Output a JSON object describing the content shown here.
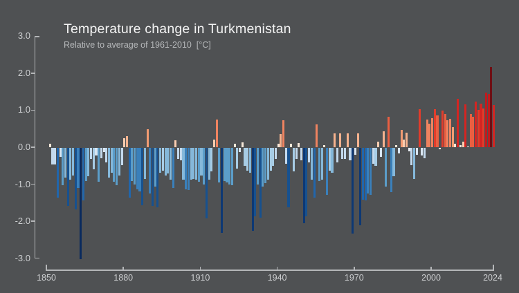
{
  "page": {
    "colors": {
      "background": "#4f5153",
      "axis": "#b5b7b9",
      "tick_label": "#ccced0",
      "title": "#f3f3f3",
      "subtitle": "#b6b8ba",
      "record_warm": "#6f0e13",
      "record_cold": "#0a2a5e"
    }
  },
  "chart_data": {
    "type": "bar",
    "title": "Temperature change in Turkmenistan",
    "subtitle": "Relative to average of 1961-2010  [°C]",
    "unit": "°C",
    "baseline_period": "1961-2010",
    "year_start": 1850,
    "year_end": 2024,
    "xlim": [
      1850,
      2024
    ],
    "ylim": [
      -3.0,
      3.0
    ],
    "grid": false,
    "legend": "none",
    "y_ticks": [
      3,
      2,
      1,
      0,
      -1,
      -2,
      -3
    ],
    "x_ticks": [
      1850,
      1880,
      1910,
      1940,
      1970,
      2000,
      2024
    ],
    "values": [
      0.0,
      0.1,
      -0.45,
      -0.45,
      -1.35,
      -0.25,
      -1.02,
      -0.81,
      -1.58,
      -0.87,
      -0.75,
      -1.67,
      -1.1,
      -3.02,
      -1.43,
      -0.9,
      -0.78,
      -0.31,
      -0.59,
      -0.22,
      -0.93,
      -0.28,
      -0.13,
      -0.41,
      -0.81,
      -0.69,
      -0.93,
      -1.02,
      -0.75,
      -0.47,
      0.25,
      0.3,
      -1.36,
      -0.9,
      -1.0,
      -1.12,
      -1.18,
      -1.55,
      -0.84,
      0.49,
      -1.24,
      -1.58,
      -1.06,
      -1.61,
      -0.69,
      -0.62,
      -0.75,
      -0.7,
      -0.87,
      -1.1,
      0.18,
      -0.3,
      -0.35,
      -0.87,
      -1.12,
      -1.15,
      -0.87,
      -0.84,
      -0.87,
      -0.93,
      -0.75,
      -1.0,
      -1.92,
      -0.87,
      -0.65,
      0.2,
      0.75,
      -0.95,
      -2.3,
      -0.9,
      -0.95,
      -1.0,
      -1.02,
      0.09,
      -0.56,
      -0.12,
      0.13,
      -0.5,
      -0.62,
      -0.69,
      -2.25,
      -1.85,
      -1.0,
      -1.9,
      -1.05,
      -0.96,
      -0.87,
      -0.62,
      -0.5,
      -0.3,
      0.1,
      0.36,
      0.73,
      -0.44,
      -1.61,
      0.09,
      -0.65,
      -0.31,
      0.12,
      -0.35,
      -2.04,
      -1.86,
      -0.41,
      -0.87,
      -1.36,
      0.62,
      -0.9,
      -0.87,
      0.05,
      -1.27,
      -0.62,
      -0.69,
      0.38,
      -0.41,
      0.38,
      -0.31,
      -0.3,
      0.38,
      -0.35,
      -2.32,
      -0.2,
      0.38,
      -2.1,
      -1.4,
      -1.43,
      -1.24,
      -1.27,
      -0.44,
      -0.5,
      0.15,
      -0.25,
      0.43,
      -1.06,
      0.83,
      -1.21,
      -0.78,
      0.05,
      -0.16,
      0.46,
      0.21,
      0.4,
      -0.1,
      -0.47,
      -0.84,
      -0.19,
      1.03,
      -0.22,
      -0.28,
      0.75,
      0.64,
      0.78,
      1.03,
      0.86,
      -0.05,
      0.98,
      0.89,
      0.72,
      0.77,
      0.55,
      0.1,
      1.3,
      0.05,
      0.15,
      1.15,
      0.02,
      0.9,
      0.83,
      1.23,
      1.0,
      1.17,
      1.05,
      1.48,
      1.43,
      2.17,
      1.13
    ],
    "color_scale": [
      {
        "max": -2.55,
        "color": "#0a2a5e"
      },
      {
        "max": -1.95,
        "color": "#0d3874"
      },
      {
        "max": -1.55,
        "color": "#17518f"
      },
      {
        "max": -1.28,
        "color": "#2166ac"
      },
      {
        "max": -1.08,
        "color": "#3a80bb"
      },
      {
        "max": -0.88,
        "color": "#5b9dc9"
      },
      {
        "max": -0.68,
        "color": "#85b8da"
      },
      {
        "max": -0.48,
        "color": "#a7cce5"
      },
      {
        "max": -0.28,
        "color": "#c3d9ed"
      },
      {
        "max": -0.12,
        "color": "#d9e6f2"
      },
      {
        "max": -0.02,
        "color": "#e9eef4"
      },
      {
        "max": 0.02,
        "color": "#efece6"
      },
      {
        "max": 0.14,
        "color": "#f6e8d9"
      },
      {
        "max": 0.28,
        "color": "#f9cdb0"
      },
      {
        "max": 0.44,
        "color": "#f6b28e"
      },
      {
        "max": 0.58,
        "color": "#f29b72"
      },
      {
        "max": 0.78,
        "color": "#ef8360"
      },
      {
        "max": 0.93,
        "color": "#ea5f41"
      },
      {
        "max": 1.08,
        "color": "#e23c2b"
      },
      {
        "max": 1.32,
        "color": "#d42522"
      },
      {
        "max": 1.95,
        "color": "#c01b1e"
      },
      {
        "max": 99,
        "color": "#6f0e13"
      }
    ]
  }
}
